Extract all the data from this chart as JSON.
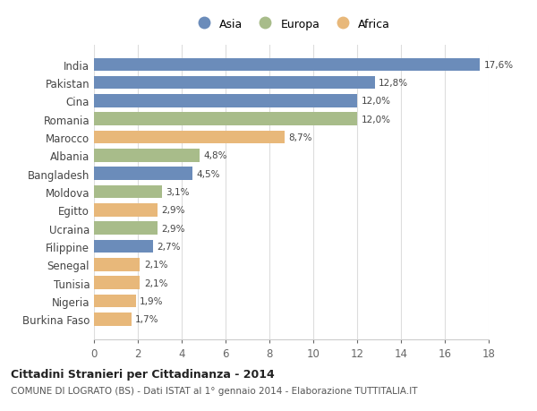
{
  "countries": [
    "India",
    "Pakistan",
    "Cina",
    "Romania",
    "Marocco",
    "Albania",
    "Bangladesh",
    "Moldova",
    "Egitto",
    "Ucraina",
    "Filippine",
    "Senegal",
    "Tunisia",
    "Nigeria",
    "Burkina Faso"
  ],
  "values": [
    17.6,
    12.8,
    12.0,
    12.0,
    8.7,
    4.8,
    4.5,
    3.1,
    2.9,
    2.9,
    2.7,
    2.1,
    2.1,
    1.9,
    1.7
  ],
  "labels": [
    "17,6%",
    "12,8%",
    "12,0%",
    "12,0%",
    "8,7%",
    "4,8%",
    "4,5%",
    "3,1%",
    "2,9%",
    "2,9%",
    "2,7%",
    "2,1%",
    "2,1%",
    "1,9%",
    "1,7%"
  ],
  "continents": [
    "Asia",
    "Asia",
    "Asia",
    "Europa",
    "Africa",
    "Europa",
    "Asia",
    "Europa",
    "Africa",
    "Europa",
    "Asia",
    "Africa",
    "Africa",
    "Africa",
    "Africa"
  ],
  "continent_colors": {
    "Asia": "#6b8cba",
    "Europa": "#a8bc8a",
    "Africa": "#e8b87a"
  },
  "legend_entries": [
    "Asia",
    "Europa",
    "Africa"
  ],
  "title": "Cittadini Stranieri per Cittadinanza - 2014",
  "subtitle": "COMUNE DI LOGRATO (BS) - Dati ISTAT al 1° gennaio 2014 - Elaborazione TUTTITALIA.IT",
  "xlim": [
    0,
    18
  ],
  "xticks": [
    0,
    2,
    4,
    6,
    8,
    10,
    12,
    14,
    16,
    18
  ],
  "background_color": "#ffffff",
  "grid_color": "#dddddd",
  "bar_height": 0.72,
  "label_fontsize": 7.5,
  "ytick_fontsize": 8.5,
  "xtick_fontsize": 8.5,
  "legend_fontsize": 9,
  "title_fontsize": 9,
  "subtitle_fontsize": 7.5
}
